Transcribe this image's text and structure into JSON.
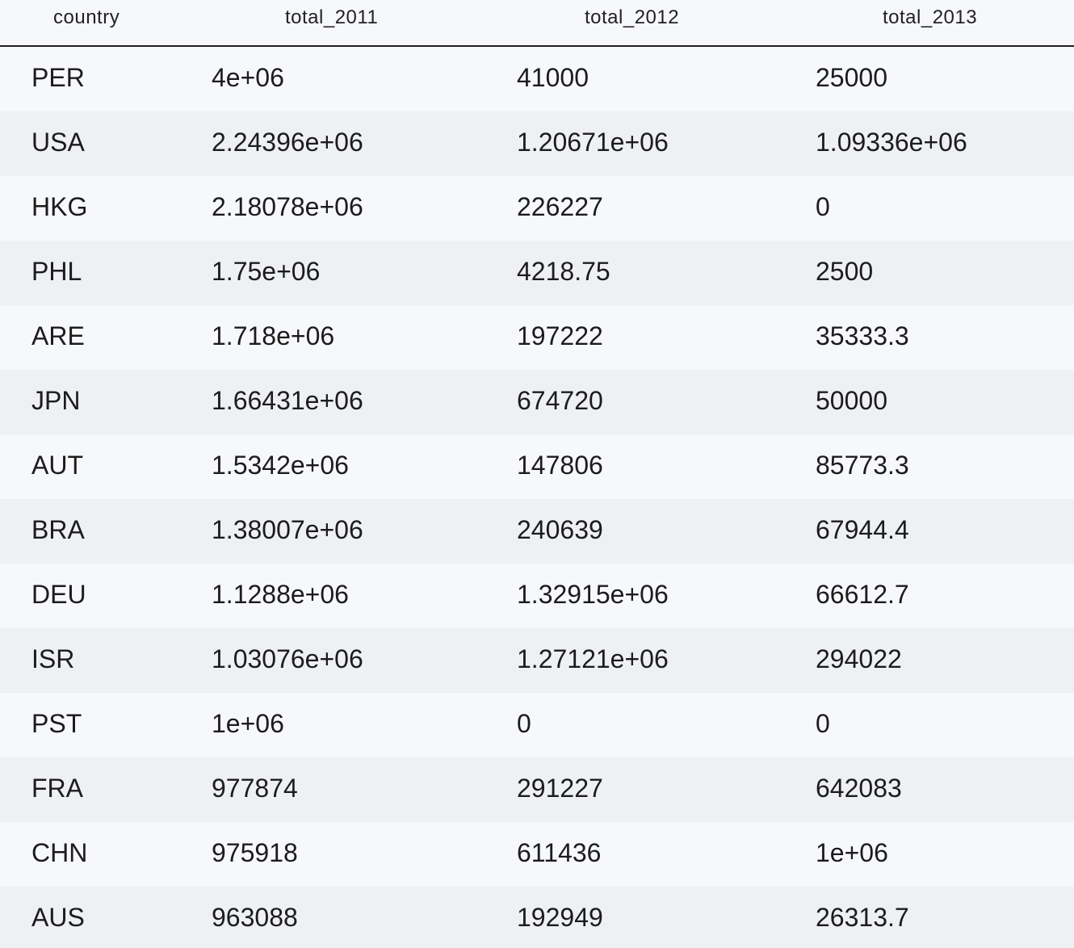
{
  "table": {
    "columns": [
      "country",
      "total_2011",
      "total_2012",
      "total_2013"
    ],
    "rows": [
      [
        "PER",
        "4e+06",
        "41000",
        "25000"
      ],
      [
        "USA",
        "2.24396e+06",
        "1.20671e+06",
        "1.09336e+06"
      ],
      [
        "HKG",
        "2.18078e+06",
        "226227",
        "0"
      ],
      [
        "PHL",
        "1.75e+06",
        "4218.75",
        "2500"
      ],
      [
        "ARE",
        "1.718e+06",
        "197222",
        "35333.3"
      ],
      [
        "JPN",
        "1.66431e+06",
        "674720",
        "50000"
      ],
      [
        "AUT",
        "1.5342e+06",
        "147806",
        "85773.3"
      ],
      [
        "BRA",
        "1.38007e+06",
        "240639",
        "67944.4"
      ],
      [
        "DEU",
        "1.1288e+06",
        "1.32915e+06",
        "66612.7"
      ],
      [
        "ISR",
        "1.03076e+06",
        "1.27121e+06",
        "294022"
      ],
      [
        "PST",
        "1e+06",
        "0",
        "0"
      ],
      [
        "FRA",
        "977874",
        "291227",
        "642083"
      ],
      [
        "CHN",
        "975918",
        "611436",
        "1e+06"
      ],
      [
        "AUS",
        "963088",
        "192949",
        "26313.7"
      ]
    ]
  }
}
